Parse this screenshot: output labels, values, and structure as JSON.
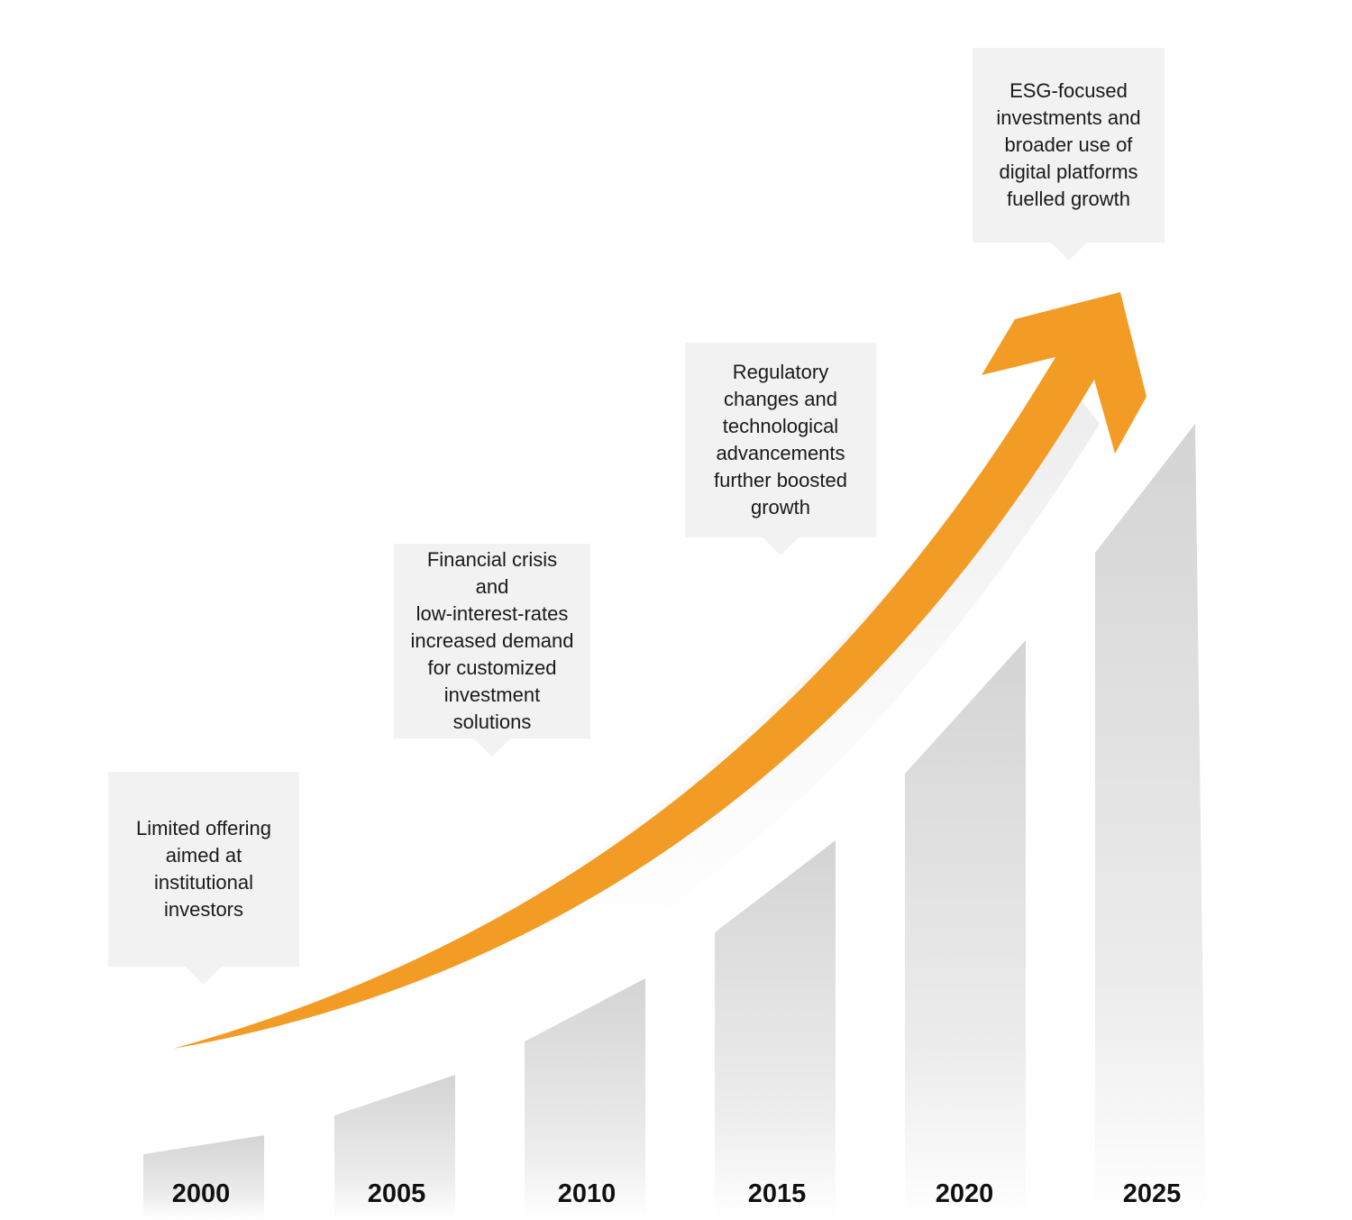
{
  "colors": {
    "arrow": "#f39c25",
    "bar_top": "#d4d4d4",
    "bar_bottom": "#ffffff",
    "callout_bg": "#f2f2f2",
    "text": "#1a1a1a"
  },
  "timeline": [
    {
      "year": "2000",
      "growth_level": 0.05,
      "callout": "Limited offering\naimed at\ninstitutional\ninvestors"
    },
    {
      "year": "2005",
      "growth_level": 0.17,
      "callout": ""
    },
    {
      "year": "2010",
      "growth_level": 0.31,
      "callout": "Financial crisis and\nlow-interest-rates\nincreased demand\nfor customized\ninvestment\nsolutions"
    },
    {
      "year": "2015",
      "growth_level": 0.46,
      "callout": ""
    },
    {
      "year": "2020",
      "growth_level": 0.65,
      "callout": "Regulatory\nchanges and\ntechnological\nadvancements\nfurther boosted\ngrowth"
    },
    {
      "year": "2025",
      "growth_level": 1.0,
      "callout": "ESG-focused\ninvestments and\nbroader use of\ndigital platforms\nfuelled growth"
    }
  ],
  "arrow_icon": "trend-up-arrow-icon"
}
